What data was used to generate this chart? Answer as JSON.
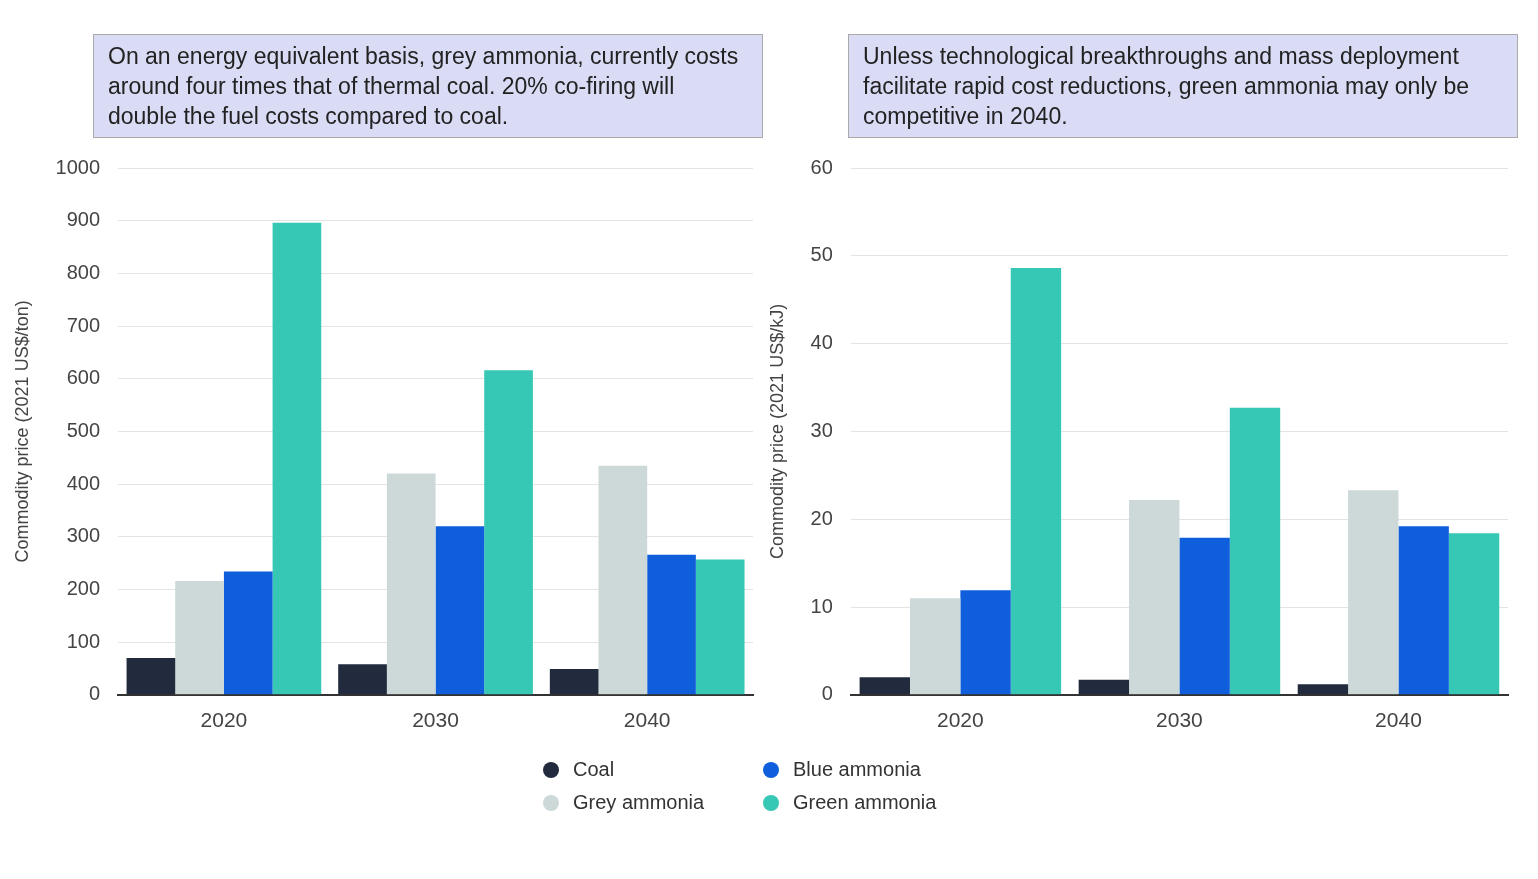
{
  "chart_data": [
    {
      "type": "bar",
      "ylabel": "Commodity price (2021 US$/ton)",
      "annotations": [
        "On an energy equivalent basis, grey ammonia, currently costs around four times that of thermal coal. 20% co-firing will double the fuel costs compared to coal."
      ],
      "categories": [
        "2020",
        "2030",
        "2040"
      ],
      "series": [
        {
          "name": "Coal",
          "color": "#222b3d",
          "values": [
            70,
            58,
            49
          ]
        },
        {
          "name": "Grey ammonia",
          "color": "#cdd8d8",
          "values": [
            216,
            420,
            435
          ]
        },
        {
          "name": "Blue ammonia",
          "color": "#0f5fdc",
          "values": [
            234,
            320,
            266
          ]
        },
        {
          "name": "Green ammonia",
          "color": "#36c8b4",
          "values": [
            896,
            616,
            257
          ]
        }
      ],
      "ylim": [
        0,
        1000
      ],
      "yticks": [
        0,
        100,
        200,
        300,
        400,
        500,
        600,
        700,
        800,
        900,
        1000
      ],
      "grid": "y",
      "legend": "bottom"
    },
    {
      "type": "bar",
      "ylabel": "Commodity price (2021 US$/kJ)",
      "annotations": [
        "Unless technological breakthroughs and mass deployment facilitate rapid cost reductions, green ammonia may only be competitive in 2040."
      ],
      "categories": [
        "2020",
        "2030",
        "2040"
      ],
      "series": [
        {
          "color": "#222b3d",
          "values": [
            2.0,
            1.7,
            1.2
          ]
        },
        {
          "color": "#cdd8d8",
          "values": [
            11.0,
            22.2,
            23.3
          ]
        },
        {
          "color": "#0f5fdc",
          "values": [
            11.9,
            17.9,
            19.2
          ]
        },
        {
          "color": "#36c8b4",
          "values": [
            48.6,
            32.7,
            18.4
          ]
        }
      ],
      "ylim": [
        0,
        60
      ],
      "yticks": [
        0,
        10,
        20,
        30,
        40,
        50,
        60
      ],
      "grid": "y"
    }
  ]
}
